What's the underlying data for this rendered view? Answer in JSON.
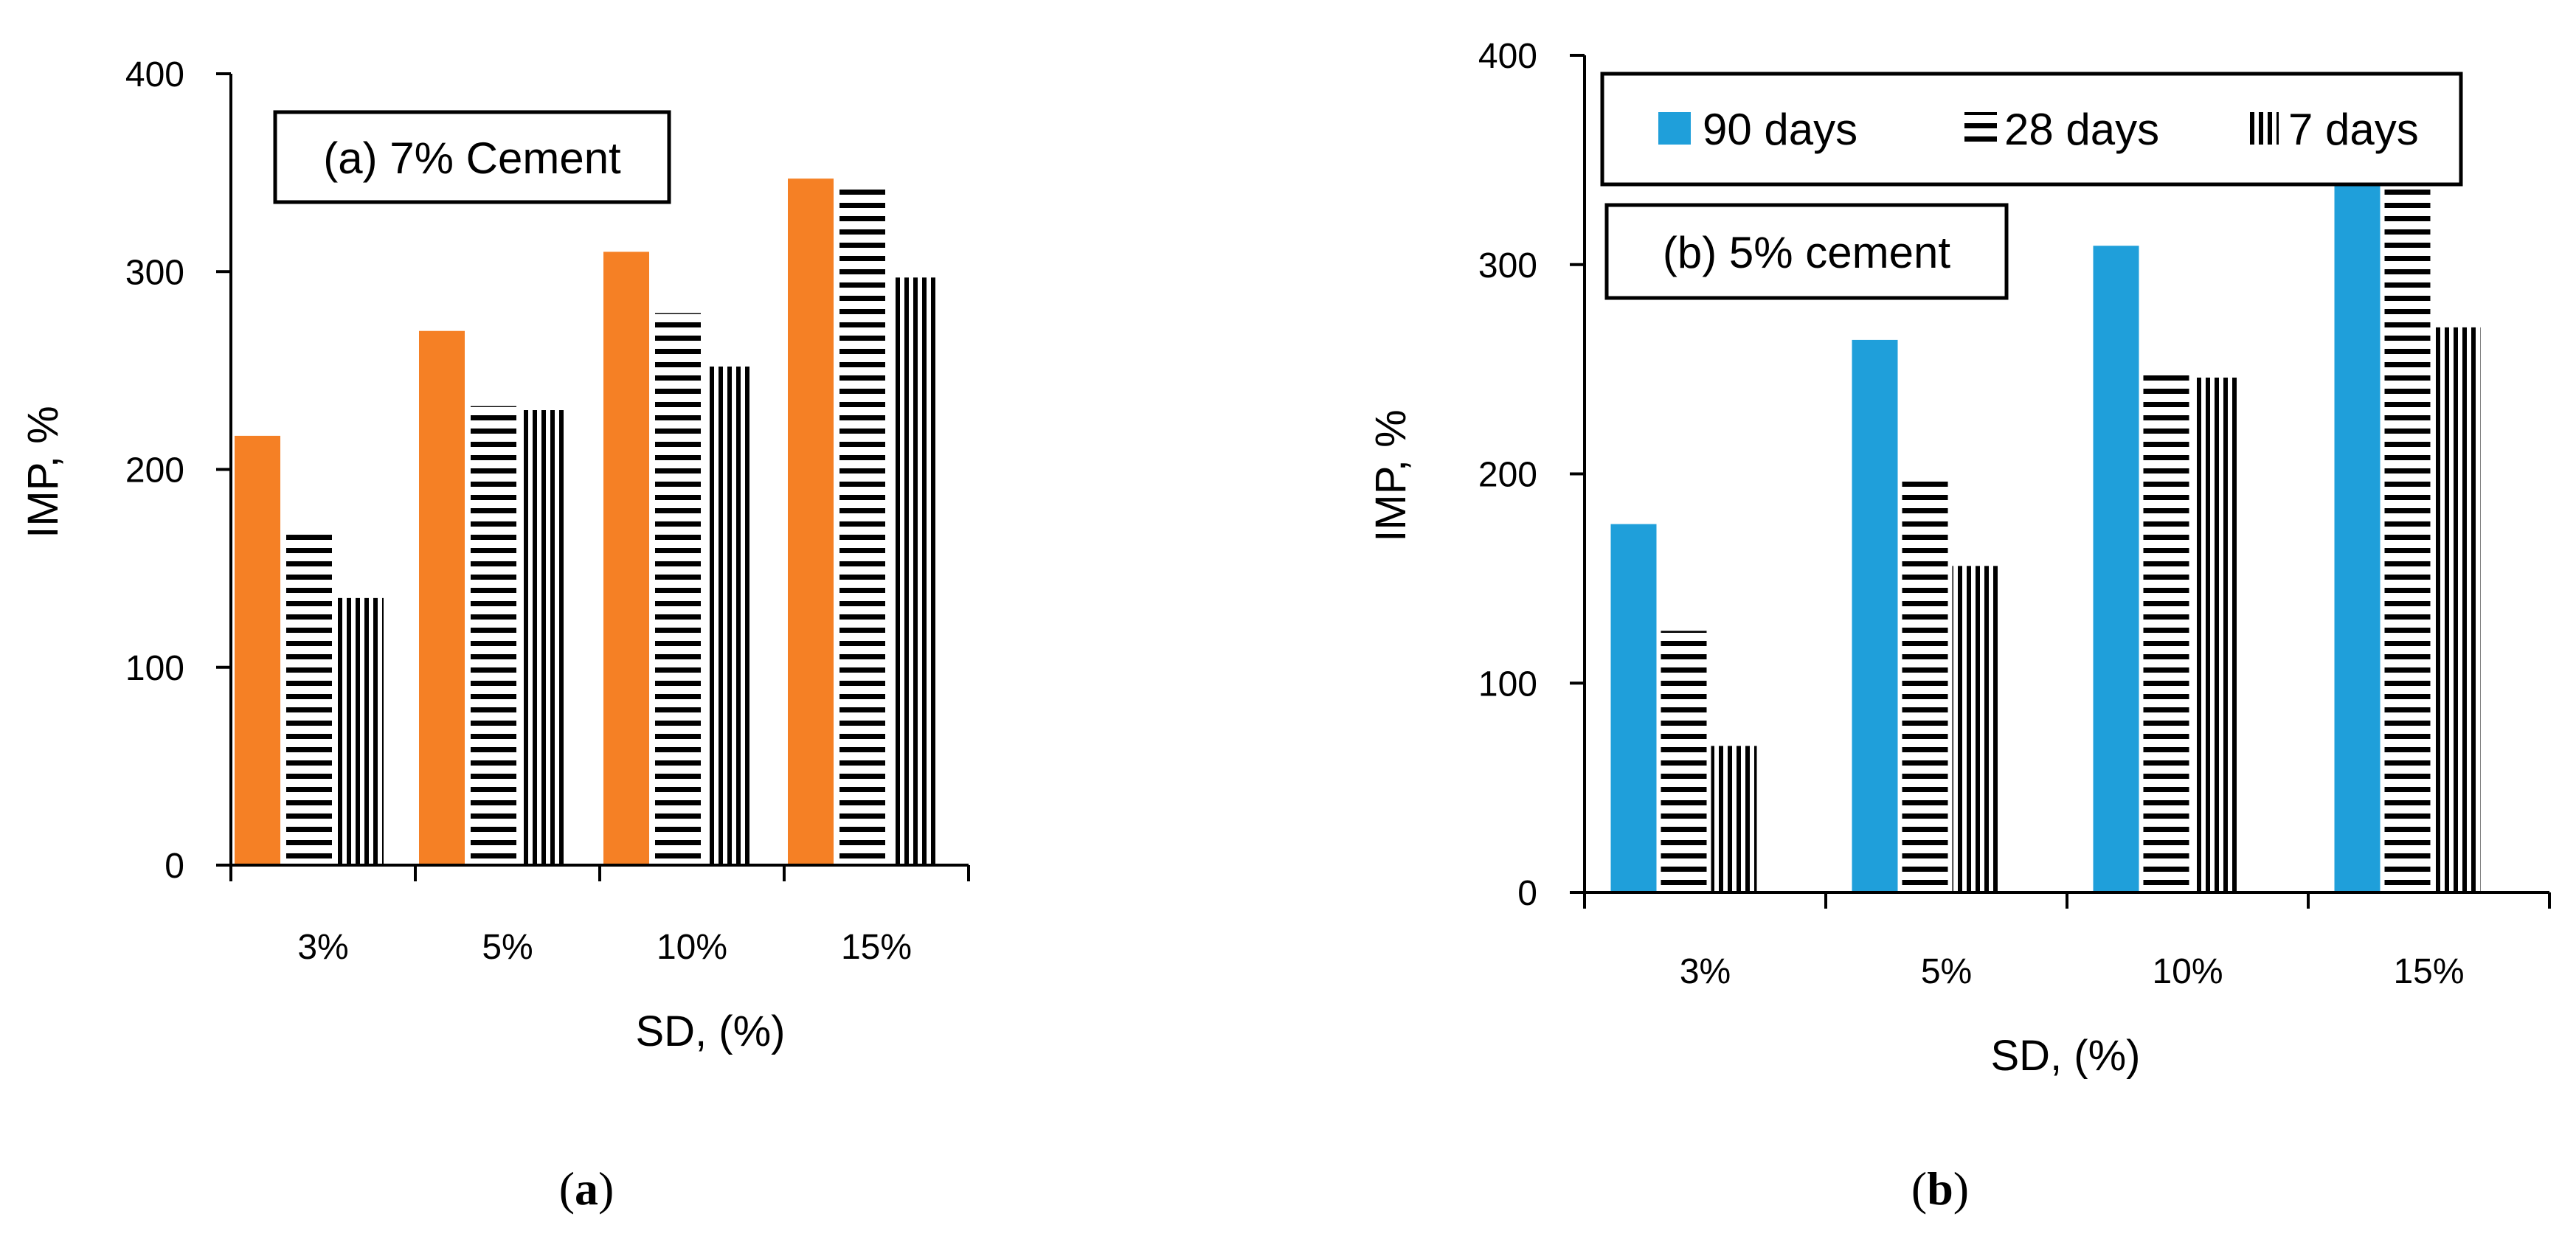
{
  "chart_data": [
    {
      "type": "bar",
      "panel": "a",
      "panel_label": "a",
      "annotation": "(a) 7% Cement",
      "categories": [
        "3%",
        "5%",
        "10%",
        "15%"
      ],
      "series": [
        {
          "name": "90 days",
          "values": [
            217,
            270,
            310,
            347
          ],
          "pattern": "solid",
          "color": "#F58025"
        },
        {
          "name": "28 days",
          "values": [
            167,
            232,
            279,
            343
          ],
          "pattern": "horizontal",
          "color": "#000000"
        },
        {
          "name": "7 days",
          "values": [
            135,
            230,
            252,
            297
          ],
          "pattern": "vertical",
          "color": "#000000"
        }
      ],
      "xlabel": "SD, (%)",
      "ylabel": "IMP, %",
      "ylim": [
        0,
        400
      ],
      "yticks": [
        0,
        100,
        200,
        300,
        400
      ],
      "legend": null
    },
    {
      "type": "bar",
      "panel": "b",
      "panel_label": "b",
      "annotation": "(b) 5% cement",
      "categories": [
        "3%",
        "5%",
        "10%",
        "15%"
      ],
      "series": [
        {
          "name": "90 days",
          "values": [
            176,
            264,
            309,
            340
          ],
          "pattern": "solid",
          "color": "#1F9FDA"
        },
        {
          "name": "28 days",
          "values": [
            125,
            197,
            248,
            340
          ],
          "pattern": "horizontal",
          "color": "#000000"
        },
        {
          "name": "7 days",
          "values": [
            70,
            156,
            246,
            270
          ],
          "pattern": "vertical",
          "color": "#000000"
        }
      ],
      "xlabel": "SD, (%)",
      "ylabel": "IMP, %",
      "ylim": [
        0,
        400
      ],
      "yticks": [
        0,
        100,
        200,
        300,
        400
      ],
      "legend": {
        "placement": "top",
        "entries": [
          "90 days",
          "28 days",
          "7 days"
        ]
      }
    }
  ]
}
